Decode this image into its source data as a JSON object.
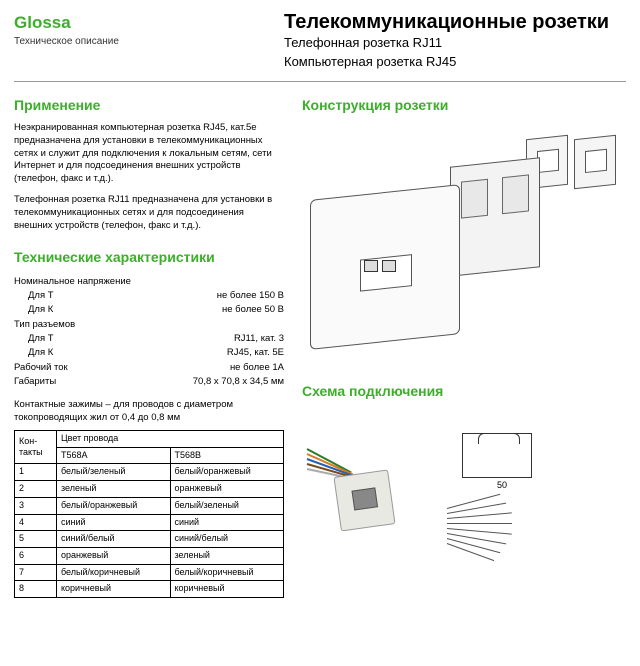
{
  "colors": {
    "accent": "#3DAE2B"
  },
  "header": {
    "brand": "Glossa",
    "brand_sub": "Техническое описание",
    "title": "Телекоммуникационные розетки",
    "sub1": "Телефонная розетка RJ11",
    "sub2": "Компьютерная розетка RJ45"
  },
  "sections": {
    "application": "Применение",
    "construction": "Конструкция розетки",
    "specs": "Технические характеристики",
    "wiring": "Схема подключения"
  },
  "application_text": [
    "Неэкранированная компьютерная розетка RJ45, кат.5е предназначена для установки в телекоммуникационных сетях и служит для подключения к локальным сетям, сети Интернет и для подсоединения внешних устройств (телефон, факс и т.д.).",
    "Телефонная розетка RJ11 предназначена для установки в телекоммуникационных сетях и для подсоединения внешних устройств (телефон, факс и т.д.)."
  ],
  "specs": [
    {
      "label": "Номинальное напряжение",
      "value": ""
    },
    {
      "label": "Для Т",
      "indent": true,
      "value": "не более 150 В"
    },
    {
      "label": "Для К",
      "indent": true,
      "value": "не более 50 В"
    },
    {
      "label": "Тип разъемов",
      "value": ""
    },
    {
      "label": "Для Т",
      "indent": true,
      "value": "RJ11, кат. 3"
    },
    {
      "label": "Для К",
      "indent": true,
      "value": "RJ45, кат. 5Е"
    },
    {
      "label": "Рабочий ток",
      "value": "не более 1А"
    },
    {
      "label": "Габариты",
      "value": "70,8 х 70,8 х 34,5 мм"
    }
  ],
  "note": "Контактные зажимы – для проводов с диаметром токопроводящих жил от 0,4 до 0,8 мм",
  "wiring_table": {
    "head": {
      "c1": "Кон-такты",
      "c2": "Цвет провода",
      "sub_a": "T568A",
      "sub_b": "T568B"
    },
    "rows": [
      {
        "n": "1",
        "a": "белый/зеленый",
        "b": "белый/оранжевый"
      },
      {
        "n": "2",
        "a": "зеленый",
        "b": "оранжевый"
      },
      {
        "n": "3",
        "a": "белый/оранжевый",
        "b": "белый/зеленый"
      },
      {
        "n": "4",
        "a": "синий",
        "b": "синий"
      },
      {
        "n": "5",
        "a": "синий/белый",
        "b": "синий/белый"
      },
      {
        "n": "6",
        "a": "оранжевый",
        "b": "зеленый"
      },
      {
        "n": "7",
        "a": "белый/коричневый",
        "b": "белый/коричневый"
      },
      {
        "n": "8",
        "a": "коричневый",
        "b": "коричневый"
      }
    ]
  },
  "diagram": {
    "dim_label": "50"
  }
}
